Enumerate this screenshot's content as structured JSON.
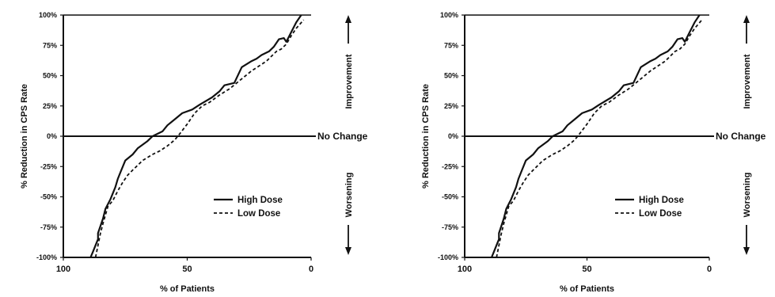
{
  "chart_data": [
    {
      "type": "line",
      "xlabel": "% of Patients",
      "ylabel": "% Reduction in CPS Rate",
      "x_ticks": [
        "100",
        "50",
        "0"
      ],
      "y_ticks": [
        "100%",
        "75%",
        "50%",
        "25%",
        "0%",
        "-25%",
        "-50%",
        "-75%",
        "-100%"
      ],
      "xlim": [
        100,
        0
      ],
      "ylim": [
        -100,
        100
      ],
      "reference_line": {
        "y": 0,
        "label": "No Change"
      },
      "side_labels": {
        "top": "Improvement",
        "bottom": "Worsening"
      },
      "legend_position": "lower-right",
      "series": [
        {
          "name": "High Dose",
          "style": "solid",
          "x": [
            89,
            88,
            87,
            86,
            86,
            84,
            83,
            81,
            79,
            78,
            77,
            75,
            72,
            70,
            66,
            64,
            60,
            58,
            55,
            52,
            48,
            45,
            40,
            37,
            35,
            31,
            28,
            24,
            22,
            20,
            17,
            15,
            13,
            11,
            10,
            8,
            6,
            4
          ],
          "y": [
            -100,
            -95,
            -90,
            -85,
            -80,
            -68,
            -60,
            -52,
            -42,
            -35,
            -30,
            -20,
            -15,
            -10,
            -4,
            0,
            4,
            9,
            14,
            19,
            22,
            26,
            32,
            37,
            42,
            44,
            57,
            62,
            64,
            67,
            70,
            74,
            80,
            81,
            78,
            86,
            94,
            100
          ]
        },
        {
          "name": "Low Dose",
          "style": "dashed",
          "x": [
            87,
            86,
            85,
            84,
            83,
            82,
            80,
            78,
            76,
            74,
            72,
            70,
            68,
            64,
            61,
            58,
            55,
            53,
            50,
            47,
            44,
            41,
            37,
            33,
            30,
            27,
            24,
            21,
            18,
            16,
            14,
            12,
            10,
            8,
            6,
            3
          ],
          "y": [
            -100,
            -90,
            -80,
            -72,
            -65,
            -58,
            -53,
            -45,
            -38,
            -32,
            -28,
            -24,
            -20,
            -15,
            -12,
            -8,
            -3,
            2,
            10,
            19,
            25,
            28,
            34,
            39,
            44,
            49,
            54,
            58,
            62,
            66,
            70,
            72,
            76,
            83,
            89,
            96
          ]
        }
      ]
    },
    {
      "type": "line",
      "xlabel": "% of Patients",
      "ylabel": "% Reduction in CPS Rate",
      "x_ticks": [
        "100",
        "50",
        "0"
      ],
      "y_ticks": [
        "100%",
        "75%",
        "50%",
        "25%",
        "0%",
        "-25%",
        "-50%",
        "-75%",
        "-100%"
      ],
      "xlim": [
        100,
        0
      ],
      "ylim": [
        -100,
        100
      ],
      "reference_line": {
        "y": 0,
        "label": "No Change"
      },
      "side_labels": {
        "top": "Improvement",
        "bottom": "Worsening"
      },
      "legend_position": "lower-right",
      "series": [
        {
          "name": "High Dose",
          "style": "solid",
          "x": [
            89,
            88,
            87,
            86,
            86,
            84,
            83,
            81,
            79,
            78,
            77,
            75,
            72,
            70,
            66,
            64,
            60,
            58,
            55,
            52,
            48,
            45,
            40,
            37,
            35,
            31,
            28,
            24,
            22,
            20,
            17,
            15,
            13,
            11,
            10,
            8,
            6,
            4
          ],
          "y": [
            -100,
            -95,
            -90,
            -85,
            -80,
            -68,
            -60,
            -52,
            -42,
            -35,
            -30,
            -20,
            -15,
            -10,
            -4,
            0,
            4,
            9,
            14,
            19,
            22,
            26,
            32,
            37,
            42,
            44,
            57,
            62,
            64,
            67,
            70,
            74,
            80,
            81,
            78,
            86,
            94,
            100
          ]
        },
        {
          "name": "Low Dose",
          "style": "dashed",
          "x": [
            87,
            86,
            85,
            84,
            83,
            82,
            80,
            78,
            76,
            74,
            72,
            70,
            68,
            64,
            61,
            58,
            55,
            53,
            50,
            47,
            44,
            41,
            37,
            33,
            30,
            27,
            24,
            21,
            18,
            16,
            14,
            12,
            10,
            8,
            6,
            3
          ],
          "y": [
            -100,
            -90,
            -80,
            -72,
            -65,
            -58,
            -53,
            -45,
            -38,
            -32,
            -28,
            -24,
            -20,
            -15,
            -12,
            -8,
            -3,
            2,
            10,
            19,
            25,
            28,
            34,
            39,
            44,
            49,
            54,
            58,
            62,
            66,
            70,
            72,
            76,
            83,
            89,
            96
          ]
        }
      ]
    }
  ]
}
